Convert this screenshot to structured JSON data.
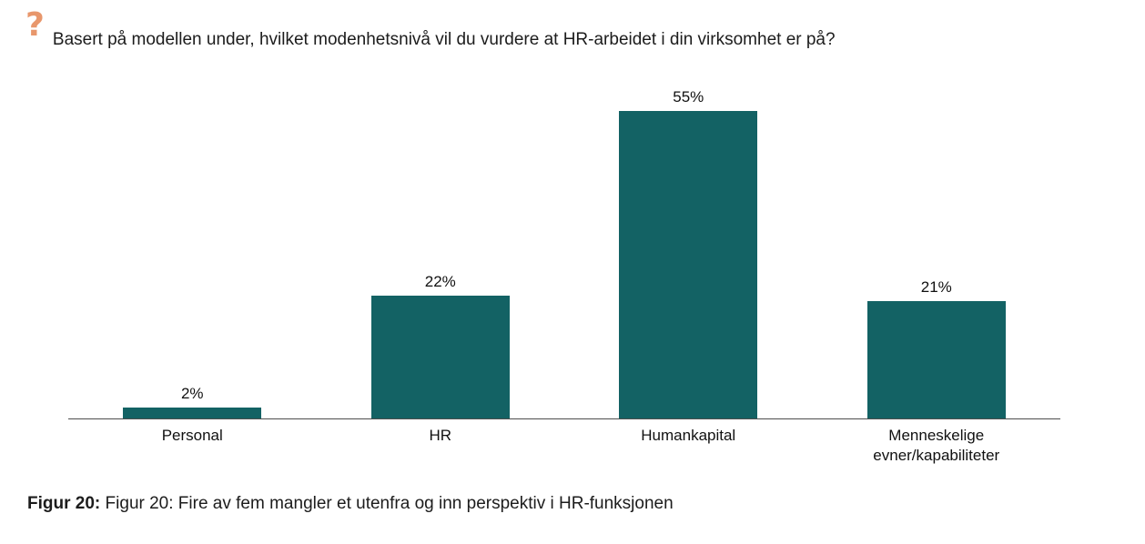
{
  "header": {
    "icon_glyph": "?",
    "question": "Basert på modellen under, hvilket modenhetsnivå vil du vurdere at HR-arbeidet i din virksomhet er på?"
  },
  "chart_data": {
    "type": "bar",
    "categories": [
      "Personal",
      "HR",
      "Humankapital",
      "Menneskelige evner/kapabiliteter"
    ],
    "values": [
      2,
      22,
      55,
      21
    ],
    "value_labels": [
      "2%",
      "22%",
      "55%",
      "21%"
    ],
    "title": "",
    "xlabel": "",
    "ylabel": "",
    "ylim": [
      0,
      60
    ],
    "grid": false,
    "legend": "none",
    "bar_color": "#136264",
    "axis_color": "#4d4d4d"
  },
  "caption": {
    "prefix": "Figur 20:",
    "text": "Figur 20: Fire av fem mangler et utenfra og inn perspektiv i HR-funksjonen"
  },
  "colors": {
    "question_icon": "#e8976c",
    "bar": "#136264",
    "axis": "#4d4d4d",
    "text": "#1c1c1c",
    "background": "#ffffff"
  }
}
